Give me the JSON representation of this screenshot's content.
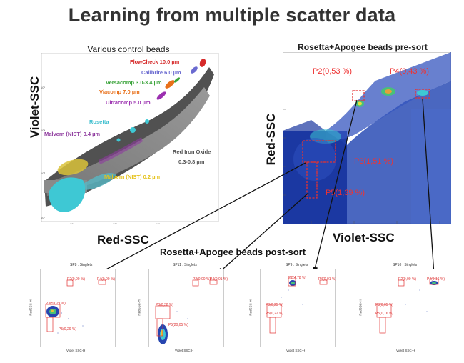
{
  "title": "Learning from multiple scatter data",
  "left_panel": {
    "title": "Various control beads",
    "ylabel": "Violet-SSC",
    "xlabel": "Red-SSC",
    "bead_labels": [
      {
        "text": "FlowCheck 10.0 µm",
        "color": "#d62b2b"
      },
      {
        "text": "Calibrite 6.0 µm",
        "color": "#6a6ad0"
      },
      {
        "text": "Versacomp 3.0-3.4 µm",
        "color": "#39a339"
      },
      {
        "text": "Viacomp 7.0 µm",
        "color": "#e8701a"
      },
      {
        "text": "Ultracomp 5.0 µm",
        "color": "#9b30b0"
      },
      {
        "text": "Rosetta",
        "color": "#3fbfcf"
      },
      {
        "text": "Malvern (NIST) 0.4 µm",
        "color": "#8e3a9e"
      },
      {
        "text": "Red Iron Oxide",
        "color": "#555555"
      },
      {
        "text": "0.3-0.8 µm",
        "color": "#555555"
      },
      {
        "text": "Malvern (NIST) 0.2 µm",
        "color": "#e5c21a"
      }
    ]
  },
  "right_panel": {
    "title_normal": "Rosetta+Apogee beads ",
    "title_bold": "pre-sort",
    "ylabel": "Red-SSC",
    "xlabel": "Violet-SSC",
    "gates": [
      {
        "text": "P2(0,53 %)"
      },
      {
        "text": "P4(0,43 %)"
      },
      {
        "text": "P3(1,51 %)"
      },
      {
        "text": "P5(1,39 %)"
      }
    ]
  },
  "post_sort": {
    "title": "Rosetta+Apogee beads post-sort",
    "plots": [
      {
        "name": "SP8 : Singlets",
        "p2": "P2(0,00 %)",
        "p4": "P4(0,00 %)",
        "p3": "P3(59,29 %)",
        "p5": "P5(0,29 %)"
      },
      {
        "name": "SP11 : Singlets",
        "p2": "P2(0,00 %)",
        "p4": "P4(0,01 %)",
        "p3": "P3(0,38 %)",
        "p5": "P5(20,05 %)"
      },
      {
        "name": "SP9 : Singlets",
        "p2": "P2(4,78 %)",
        "p4": "P4(0,01 %)",
        "p3": "P3(0,25 %)",
        "p5": "P5(0,22 %)"
      },
      {
        "name": "SP10 : Singlets",
        "p2": "P2(0,00 %)",
        "p4": "P4(9,16 %)",
        "p3": "P3(0,05 %)",
        "p5": "P5(0,16 %)"
      }
    ],
    "ylabel": "RedSSC-H",
    "xlabel": "Violet SSC-H"
  },
  "colors": {
    "scatter_blue": "#1f3fa8",
    "gate_red": "#e33333",
    "rosetta_cyan": "#3ec8d4"
  }
}
